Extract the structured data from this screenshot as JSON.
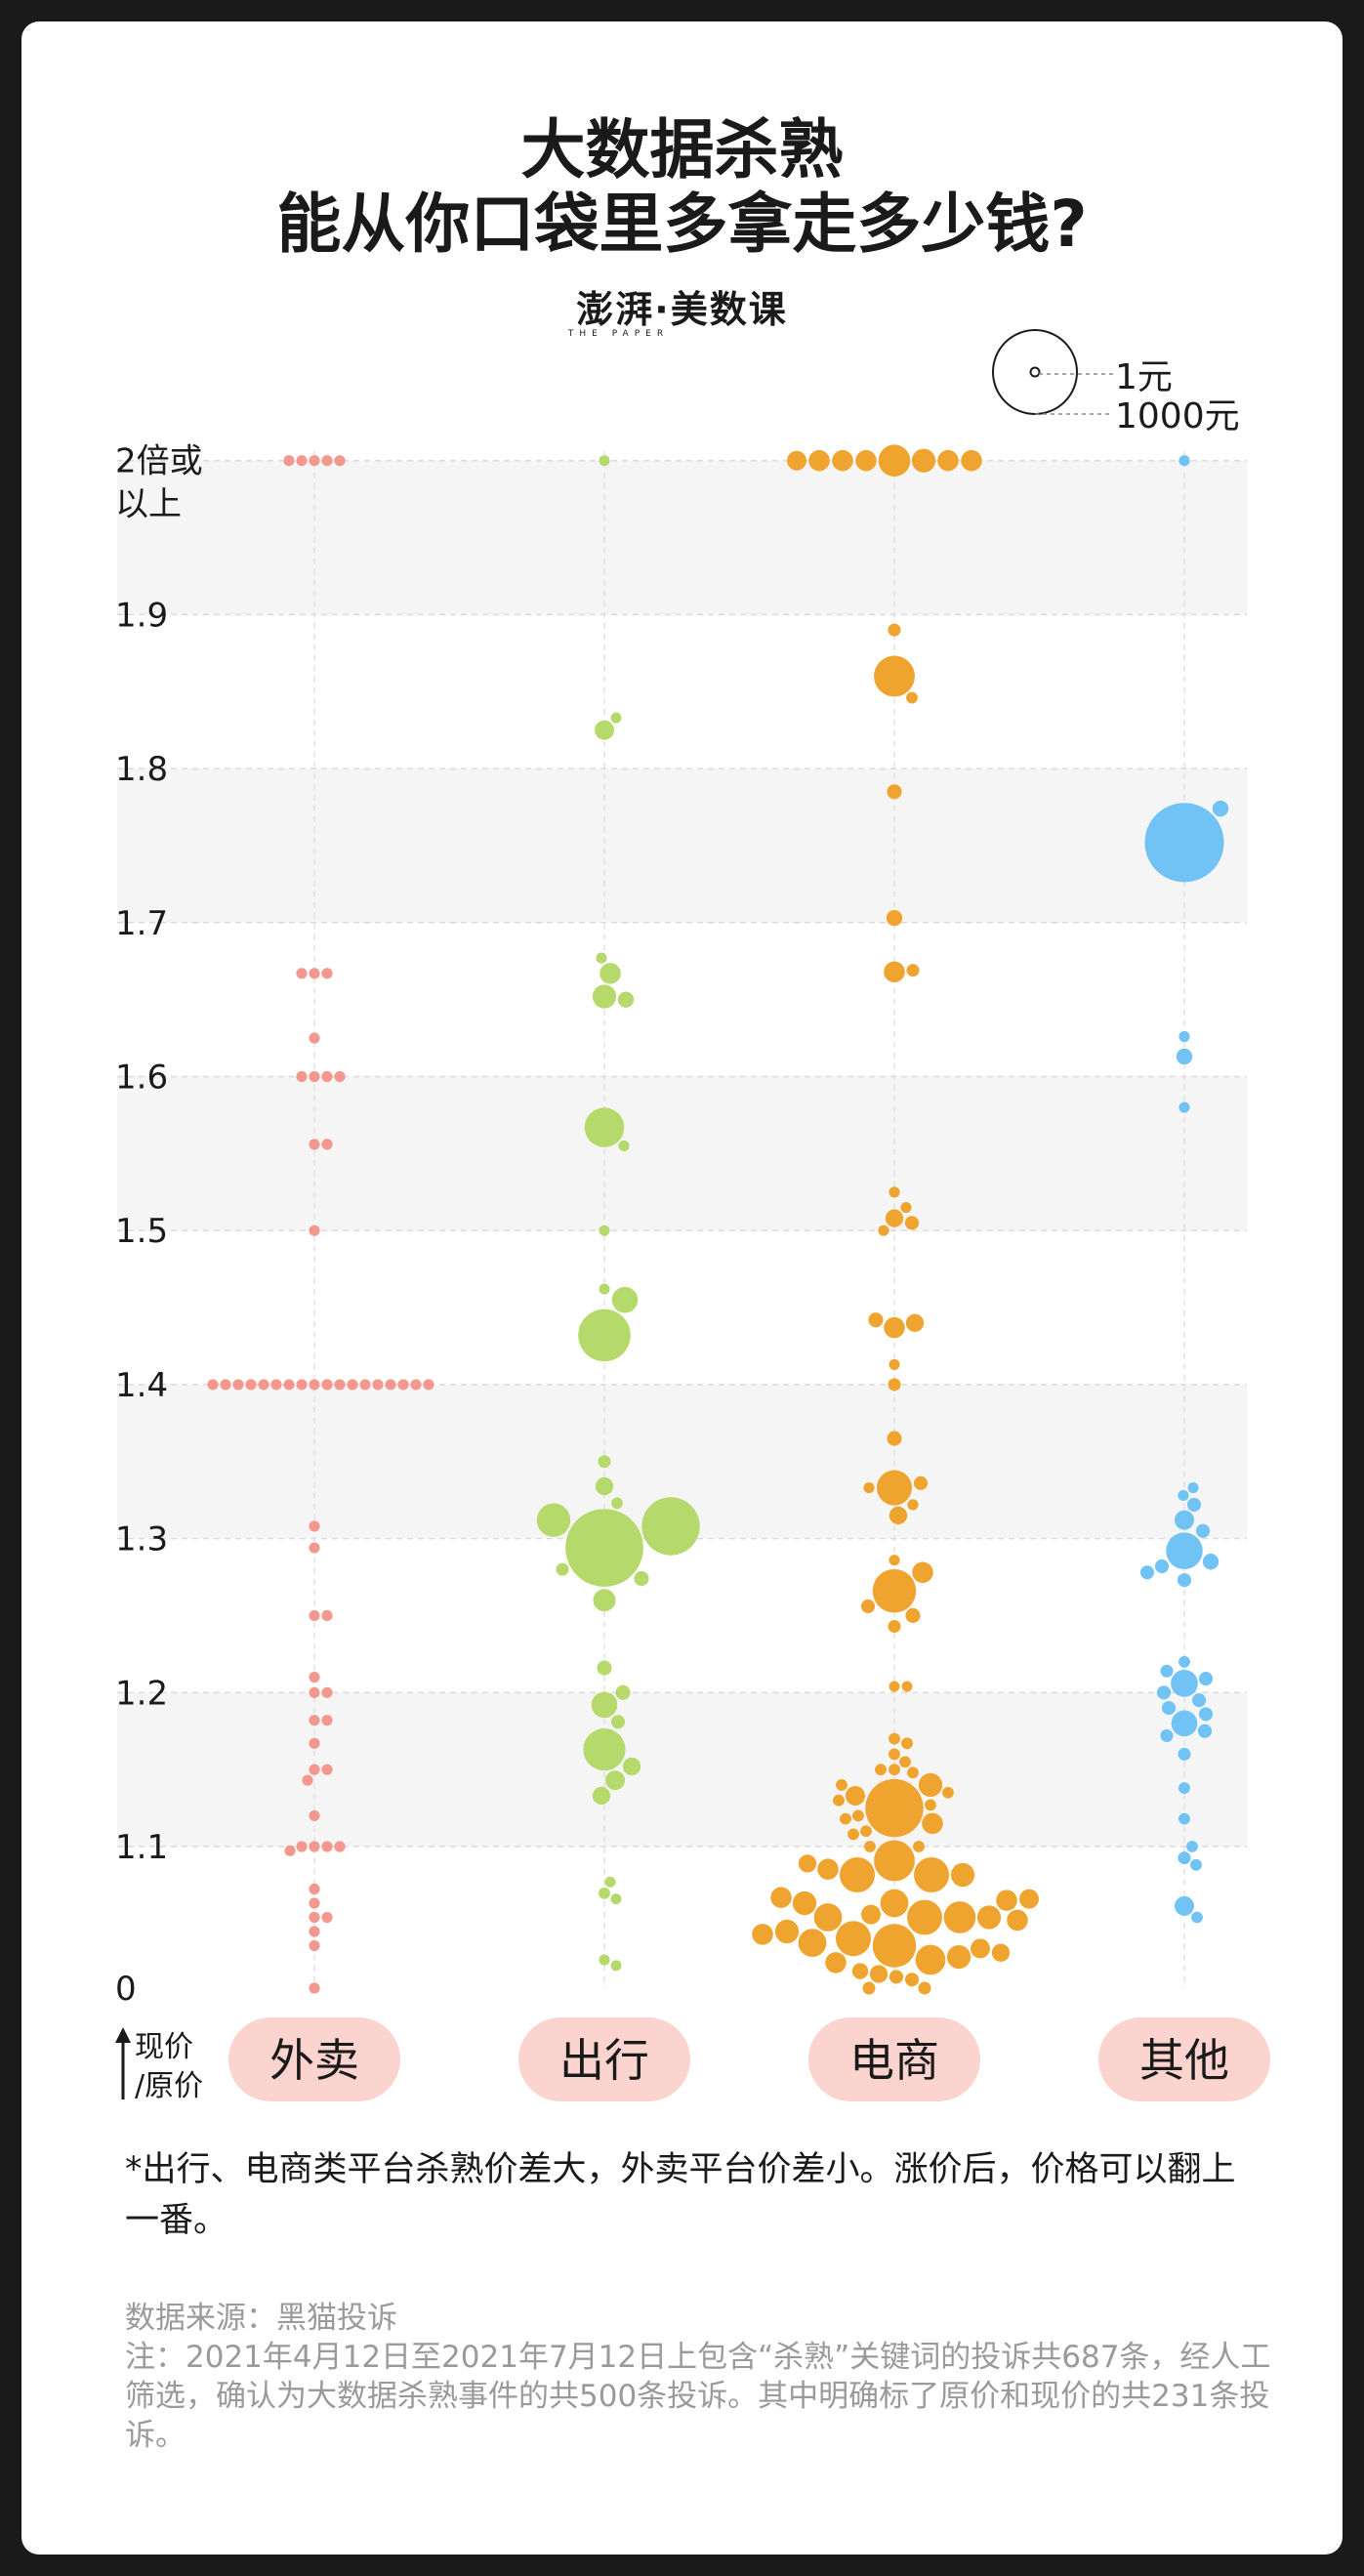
{
  "title": {
    "line1": "大数据杀熟",
    "line2": "能从你口袋里多拿走多少钱?"
  },
  "brand": {
    "name": "澎湃·美数课",
    "sub": "THE PAPER"
  },
  "legend": {
    "small_label": "1元",
    "large_label": "1000元"
  },
  "footnote": "*出行、电商类平台杀熟价差大，外卖平台价差小。涨价后，价格可以翻上一番。",
  "source": {
    "line1": "数据来源：黑猫投诉",
    "line2": "注：2021年4月12日至2021年7月12日上包含“杀熟”关键词的投诉共687条，经人工筛选，确认为大数据杀熟事件的共500条投诉。其中明确标了原价和现价的共231条投诉。"
  },
  "colors": {
    "外卖": "#f4978e",
    "出行": "#b5d96b",
    "电商": "#f0a430",
    "其他": "#71c3f5",
    "band": "#f5f5f5",
    "pill": "#fbd3cf"
  },
  "chart_data": {
    "type": "scatter",
    "subtype": "beeswarm",
    "y_axis_label": "现价/原价",
    "y_ticks": [
      "0",
      "1.1",
      "1.2",
      "1.3",
      "1.4",
      "1.5",
      "1.6",
      "1.7",
      "1.8",
      "1.9",
      "2倍或以上"
    ],
    "categories": [
      "外卖",
      "出行",
      "电商",
      "其他"
    ],
    "size_meaning": "price difference in 元 (circle area)",
    "series": [
      {
        "name": "外卖",
        "points": [
          {
            "y": 2.0,
            "v": 5
          },
          {
            "y": 2.0,
            "v": 5
          },
          {
            "y": 2.0,
            "v": 5
          },
          {
            "y": 2.0,
            "v": 5
          },
          {
            "y": 2.0,
            "v": 5
          },
          {
            "y": 1.667,
            "v": 5
          },
          {
            "y": 1.667,
            "v": 5
          },
          {
            "y": 1.667,
            "v": 5
          },
          {
            "y": 1.625,
            "v": 5
          },
          {
            "y": 1.6,
            "v": 5
          },
          {
            "y": 1.6,
            "v": 5
          },
          {
            "y": 1.6,
            "v": 5
          },
          {
            "y": 1.6,
            "v": 5
          },
          {
            "y": 1.556,
            "v": 5
          },
          {
            "y": 1.556,
            "v": 5
          },
          {
            "y": 1.5,
            "v": 5
          },
          {
            "y": 1.4,
            "v": 5
          },
          {
            "y": 1.4,
            "v": 5
          },
          {
            "y": 1.4,
            "v": 5
          },
          {
            "y": 1.4,
            "v": 5
          },
          {
            "y": 1.4,
            "v": 5
          },
          {
            "y": 1.4,
            "v": 5
          },
          {
            "y": 1.4,
            "v": 5
          },
          {
            "y": 1.4,
            "v": 5
          },
          {
            "y": 1.4,
            "v": 5
          },
          {
            "y": 1.4,
            "v": 5
          },
          {
            "y": 1.4,
            "v": 5
          },
          {
            "y": 1.4,
            "v": 5
          },
          {
            "y": 1.4,
            "v": 5
          },
          {
            "y": 1.4,
            "v": 5
          },
          {
            "y": 1.4,
            "v": 5
          },
          {
            "y": 1.4,
            "v": 5
          },
          {
            "y": 1.4,
            "v": 5
          },
          {
            "y": 1.4,
            "v": 5
          },
          {
            "y": 1.308,
            "v": 5
          },
          {
            "y": 1.294,
            "v": 5
          },
          {
            "y": 1.25,
            "v": 5
          },
          {
            "y": 1.25,
            "v": 5
          },
          {
            "y": 1.21,
            "v": 5
          },
          {
            "y": 1.2,
            "v": 5
          },
          {
            "y": 1.2,
            "v": 5
          },
          {
            "y": 1.182,
            "v": 5
          },
          {
            "y": 1.182,
            "v": 5
          },
          {
            "y": 1.167,
            "v": 5
          },
          {
            "y": 1.15,
            "v": 5
          },
          {
            "y": 1.15,
            "v": 5
          },
          {
            "y": 1.143,
            "v": 5
          },
          {
            "y": 1.12,
            "v": 5
          },
          {
            "y": 1.1,
            "v": 5
          },
          {
            "y": 1.1,
            "v": 5
          },
          {
            "y": 1.1,
            "v": 5
          },
          {
            "y": 1.1,
            "v": 5
          },
          {
            "y": 1.097,
            "v": 5
          },
          {
            "y": 1.07,
            "v": 5
          },
          {
            "y": 1.06,
            "v": 5
          },
          {
            "y": 1.05,
            "v": 5
          },
          {
            "y": 1.05,
            "v": 5
          },
          {
            "y": 1.04,
            "v": 5
          },
          {
            "y": 1.03,
            "v": 5
          },
          {
            "y": 1.0,
            "v": 5
          }
        ]
      },
      {
        "name": "出行",
        "points": [
          {
            "y": 2.0,
            "v": 4
          },
          {
            "y": 1.833,
            "v": 4
          },
          {
            "y": 1.825,
            "v": 25
          },
          {
            "y": 1.677,
            "v": 5
          },
          {
            "y": 1.667,
            "v": 30
          },
          {
            "y": 1.652,
            "v": 40
          },
          {
            "y": 1.65,
            "v": 15
          },
          {
            "y": 1.567,
            "v": 130
          },
          {
            "y": 1.555,
            "v": 5
          },
          {
            "y": 1.5,
            "v": 4
          },
          {
            "y": 1.462,
            "v": 4
          },
          {
            "y": 1.455,
            "v": 50
          },
          {
            "y": 1.432,
            "v": 240
          },
          {
            "y": 1.35,
            "v": 8
          },
          {
            "y": 1.334,
            "v": 20
          },
          {
            "y": 1.323,
            "v": 6
          },
          {
            "y": 1.308,
            "v": 300
          },
          {
            "y": 1.312,
            "v": 90
          },
          {
            "y": 1.294,
            "v": 560
          },
          {
            "y": 1.28,
            "v": 8
          },
          {
            "y": 1.274,
            "v": 12
          },
          {
            "y": 1.26,
            "v": 35
          },
          {
            "y": 1.216,
            "v": 12
          },
          {
            "y": 1.2,
            "v": 12
          },
          {
            "y": 1.192,
            "v": 50
          },
          {
            "y": 1.181,
            "v": 10
          },
          {
            "y": 1.163,
            "v": 150
          },
          {
            "y": 1.152,
            "v": 20
          },
          {
            "y": 1.143,
            "v": 25
          },
          {
            "y": 1.133,
            "v": 20
          },
          {
            "y": 1.075,
            "v": 4
          },
          {
            "y": 1.067,
            "v": 6
          },
          {
            "y": 1.063,
            "v": 4
          },
          {
            "y": 1.02,
            "v": 5
          },
          {
            "y": 1.016,
            "v": 4
          }
        ]
      },
      {
        "name": "电商",
        "points": [
          {
            "y": 2.0,
            "v": 80
          },
          {
            "y": 2.0,
            "v": 40
          },
          {
            "y": 2.0,
            "v": 30
          },
          {
            "y": 2.0,
            "v": 30
          },
          {
            "y": 2.0,
            "v": 30
          },
          {
            "y": 2.0,
            "v": 30
          },
          {
            "y": 2.0,
            "v": 30
          },
          {
            "y": 2.0,
            "v": 25
          },
          {
            "y": 1.89,
            "v": 8
          },
          {
            "y": 1.86,
            "v": 140
          },
          {
            "y": 1.846,
            "v": 6
          },
          {
            "y": 1.785,
            "v": 12
          },
          {
            "y": 1.703,
            "v": 15
          },
          {
            "y": 1.668,
            "v": 30
          },
          {
            "y": 1.669,
            "v": 8
          },
          {
            "y": 1.525,
            "v": 5
          },
          {
            "y": 1.515,
            "v": 5
          },
          {
            "y": 1.508,
            "v": 20
          },
          {
            "y": 1.505,
            "v": 10
          },
          {
            "y": 1.5,
            "v": 5
          },
          {
            "y": 1.44,
            "v": 20
          },
          {
            "y": 1.442,
            "v": 12
          },
          {
            "y": 1.437,
            "v": 30
          },
          {
            "y": 1.413,
            "v": 5
          },
          {
            "y": 1.4,
            "v": 8
          },
          {
            "y": 1.365,
            "v": 12
          },
          {
            "y": 1.333,
            "v": 100
          },
          {
            "y": 1.336,
            "v": 10
          },
          {
            "y": 1.333,
            "v": 5
          },
          {
            "y": 1.322,
            "v": 5
          },
          {
            "y": 1.315,
            "v": 20
          },
          {
            "y": 1.278,
            "v": 30
          },
          {
            "y": 1.286,
            "v": 5
          },
          {
            "y": 1.266,
            "v": 160
          },
          {
            "y": 1.256,
            "v": 10
          },
          {
            "y": 1.25,
            "v": 12
          },
          {
            "y": 1.243,
            "v": 8
          },
          {
            "y": 1.204,
            "v": 4
          },
          {
            "y": 1.204,
            "v": 4
          },
          {
            "y": 1.17,
            "v": 6
          },
          {
            "y": 1.167,
            "v": 6
          },
          {
            "y": 1.16,
            "v": 6
          },
          {
            "y": 1.155,
            "v": 6
          },
          {
            "y": 1.15,
            "v": 6
          },
          {
            "y": 1.15,
            "v": 6
          },
          {
            "y": 1.148,
            "v": 6
          },
          {
            "y": 1.14,
            "v": 6
          },
          {
            "y": 1.135,
            "v": 6
          },
          {
            "y": 1.13,
            "v": 6
          },
          {
            "y": 1.127,
            "v": 6
          },
          {
            "y": 1.12,
            "v": 6
          },
          {
            "y": 1.118,
            "v": 6
          },
          {
            "y": 1.11,
            "v": 6
          },
          {
            "y": 1.108,
            "v": 6
          },
          {
            "y": 1.1,
            "v": 6
          },
          {
            "y": 1.1,
            "v": 6
          },
          {
            "y": 1.125,
            "v": 300
          },
          {
            "y": 1.14,
            "v": 40
          },
          {
            "y": 1.115,
            "v": 30
          },
          {
            "y": 1.133,
            "v": 25
          },
          {
            "y": 1.09,
            "v": 140
          },
          {
            "y": 1.08,
            "v": 100
          },
          {
            "y": 1.08,
            "v": 100
          },
          {
            "y": 1.08,
            "v": 40
          },
          {
            "y": 1.084,
            "v": 30
          },
          {
            "y": 1.088,
            "v": 20
          },
          {
            "y": 1.06,
            "v": 40
          },
          {
            "y": 1.06,
            "v": 60
          },
          {
            "y": 1.062,
            "v": 30
          },
          {
            "y": 1.063,
            "v": 25
          },
          {
            "y": 1.064,
            "v": 30
          },
          {
            "y": 1.05,
            "v": 80
          },
          {
            "y": 1.05,
            "v": 100
          },
          {
            "y": 1.05,
            "v": 40
          },
          {
            "y": 1.052,
            "v": 25
          },
          {
            "y": 1.048,
            "v": 30
          },
          {
            "y": 1.05,
            "v": 60
          },
          {
            "y": 1.04,
            "v": 40
          },
          {
            "y": 1.038,
            "v": 30
          },
          {
            "y": 1.035,
            "v": 100
          },
          {
            "y": 1.03,
            "v": 160
          },
          {
            "y": 1.032,
            "v": 60
          },
          {
            "y": 1.028,
            "v": 25
          },
          {
            "y": 1.02,
            "v": 70
          },
          {
            "y": 1.018,
            "v": 30
          },
          {
            "y": 1.022,
            "v": 40
          },
          {
            "y": 1.025,
            "v": 20
          },
          {
            "y": 1.01,
            "v": 20
          },
          {
            "y": 1.012,
            "v": 15
          },
          {
            "y": 1.008,
            "v": 10
          },
          {
            "y": 1.006,
            "v": 10
          },
          {
            "y": 1.0,
            "v": 8
          },
          {
            "y": 1.0,
            "v": 8
          }
        ]
      },
      {
        "name": "其他",
        "points": [
          {
            "y": 2.0,
            "v": 5
          },
          {
            "y": 1.774,
            "v": 15
          },
          {
            "y": 1.752,
            "v": 580
          },
          {
            "y": 1.626,
            "v": 5
          },
          {
            "y": 1.613,
            "v": 15
          },
          {
            "y": 1.58,
            "v": 5
          },
          {
            "y": 1.333,
            "v": 4
          },
          {
            "y": 1.328,
            "v": 5
          },
          {
            "y": 1.322,
            "v": 10
          },
          {
            "y": 1.312,
            "v": 25
          },
          {
            "y": 1.305,
            "v": 10
          },
          {
            "y": 1.292,
            "v": 110
          },
          {
            "y": 1.285,
            "v": 15
          },
          {
            "y": 1.282,
            "v": 10
          },
          {
            "y": 1.278,
            "v": 10
          },
          {
            "y": 1.273,
            "v": 10
          },
          {
            "y": 1.22,
            "v": 6
          },
          {
            "y": 1.214,
            "v": 8
          },
          {
            "y": 1.209,
            "v": 10
          },
          {
            "y": 1.206,
            "v": 55
          },
          {
            "y": 1.2,
            "v": 10
          },
          {
            "y": 1.195,
            "v": 10
          },
          {
            "y": 1.19,
            "v": 10
          },
          {
            "y": 1.186,
            "v": 10
          },
          {
            "y": 1.18,
            "v": 50
          },
          {
            "y": 1.175,
            "v": 10
          },
          {
            "y": 1.172,
            "v": 8
          },
          {
            "y": 1.16,
            "v": 8
          },
          {
            "y": 1.138,
            "v": 6
          },
          {
            "y": 1.118,
            "v": 6
          },
          {
            "y": 1.1,
            "v": 6
          },
          {
            "y": 1.092,
            "v": 8
          },
          {
            "y": 1.087,
            "v": 6
          },
          {
            "y": 1.058,
            "v": 25
          },
          {
            "y": 1.05,
            "v": 6
          }
        ]
      }
    ]
  }
}
